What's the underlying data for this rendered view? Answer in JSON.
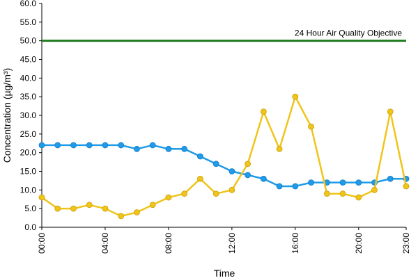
{
  "chart_data": {
    "type": "line",
    "xlabel": "Time",
    "ylabel": "Concentration (µg/m³)",
    "ylim": [
      0,
      60
    ],
    "yticks": [
      "0.0",
      "5.0",
      "10.0",
      "15.0",
      "20.0",
      "25.0",
      "30.0",
      "35.0",
      "40.0",
      "45.0",
      "50.0",
      "55.0",
      "60.0"
    ],
    "x": [
      "00:00",
      "01:00",
      "02:00",
      "03:00",
      "04:00",
      "05:00",
      "06:00",
      "07:00",
      "08:00",
      "09:00",
      "10:00",
      "11:00",
      "12:00",
      "13:00",
      "14:00",
      "15:00",
      "16:00",
      "17:00",
      "18:00",
      "19:00",
      "20:00",
      "21:00",
      "22:00",
      "23:00"
    ],
    "xtick_labels": [
      "00:00",
      "04:00",
      "08:00",
      "12:00",
      "16:00",
      "20:00",
      "23:00"
    ],
    "grid": false,
    "legend": "none",
    "series": [
      {
        "color": "#1e9be9",
        "values": [
          22,
          22,
          22,
          22,
          22,
          22,
          21,
          22,
          21,
          21,
          19,
          17,
          15,
          14,
          13,
          11,
          11,
          12,
          12,
          12,
          12,
          12,
          13,
          13
        ]
      },
      {
        "color": "#f0c419",
        "values": [
          8,
          5,
          5,
          6,
          5,
          3,
          4,
          6,
          8,
          9,
          13,
          9,
          10,
          17,
          31,
          21,
          35,
          27,
          9,
          9,
          8,
          10,
          31,
          11
        ]
      }
    ],
    "reference_line": {
      "value": 50,
      "label": "24 Hour Air Quality Objective",
      "color": "#1e7a1e"
    }
  }
}
